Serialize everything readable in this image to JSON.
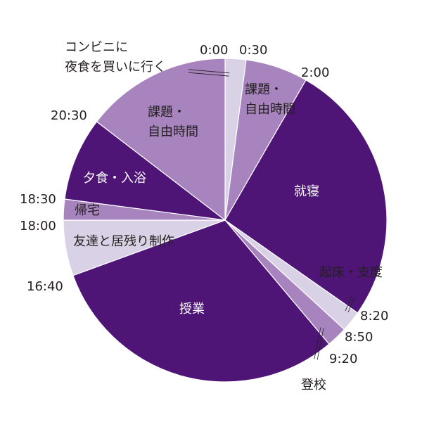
{
  "chart_data": {
    "type": "pie",
    "title": "",
    "start_angle_at_top_clockwise": true,
    "slices": [
      {
        "label": "コンビニに\n夜食を買いに行く",
        "start": "0:00",
        "end": "0:30",
        "hours": 0.5,
        "color": "#d9d2e6"
      },
      {
        "label": "課題・\n自由時間",
        "start": "0:30",
        "end": "2:00",
        "hours": 1.5,
        "color": "#a884bf"
      },
      {
        "label": "就寝",
        "start": "2:00",
        "end": "8:20",
        "hours": 6.333,
        "color": "#4e1577"
      },
      {
        "label": "起床・支度",
        "start": "8:20",
        "end": "8:50",
        "hours": 0.5,
        "color": "#d9d2e6"
      },
      {
        "label": "登校",
        "start": "8:50",
        "end": "9:20",
        "hours": 0.5,
        "color": "#a884bf"
      },
      {
        "label": "授業",
        "start": "9:20",
        "end": "16:40",
        "hours": 7.333,
        "color": "#4e1577"
      },
      {
        "label": "友達と居残り制作",
        "start": "16:40",
        "end": "18:00",
        "hours": 1.333,
        "color": "#d9d2e6"
      },
      {
        "label": "帰宅",
        "start": "18:00",
        "end": "18:30",
        "hours": 0.5,
        "color": "#a884bf"
      },
      {
        "label": "夕食・入浴",
        "start": "18:30",
        "end": "20:30",
        "hours": 2.0,
        "color": "#4e1577"
      },
      {
        "label": "課題・\n自由時間",
        "start": "20:30",
        "end": "24:00",
        "hours": 3.5,
        "color": "#a884bf"
      }
    ],
    "time_ticks": [
      "0:00",
      "0:30",
      "2:00",
      "8:20",
      "8:50",
      "9:20",
      "16:40",
      "18:00",
      "18:30",
      "20:30"
    ]
  }
}
